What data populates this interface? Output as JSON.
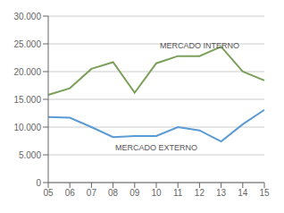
{
  "chart_data": {
    "type": "line",
    "categories": [
      "05",
      "06",
      "07",
      "08",
      "09",
      "10",
      "11",
      "12",
      "13",
      "14",
      "15"
    ],
    "series": [
      {
        "color": "#7ba05b",
        "values": [
          15800,
          17000,
          20500,
          21700,
          16200,
          21500,
          22800,
          22800,
          24500,
          20000,
          18400
        ]
      },
      {
        "color": "#5b9bd5",
        "values": [
          11800,
          11700,
          10000,
          8200,
          8400,
          8400,
          10000,
          9400,
          7400,
          10500,
          13100
        ]
      }
    ],
    "annotations": [
      "MERCADO INTERNO",
      "MERCADO EXTERNO"
    ],
    "ylim": [
      0,
      30000
    ],
    "yticks": [
      0,
      {
        "value": 5000,
        "label": "5.000"
      },
      {
        "value": 10000,
        "label": "10.000"
      },
      {
        "value": 15000,
        "label": "15.000"
      },
      {
        "value": 20000,
        "label": "20.000"
      },
      {
        "value": 25000,
        "label": "25.000"
      },
      {
        "value": 30000,
        "label": "30.000"
      }
    ],
    "grid": true
  }
}
